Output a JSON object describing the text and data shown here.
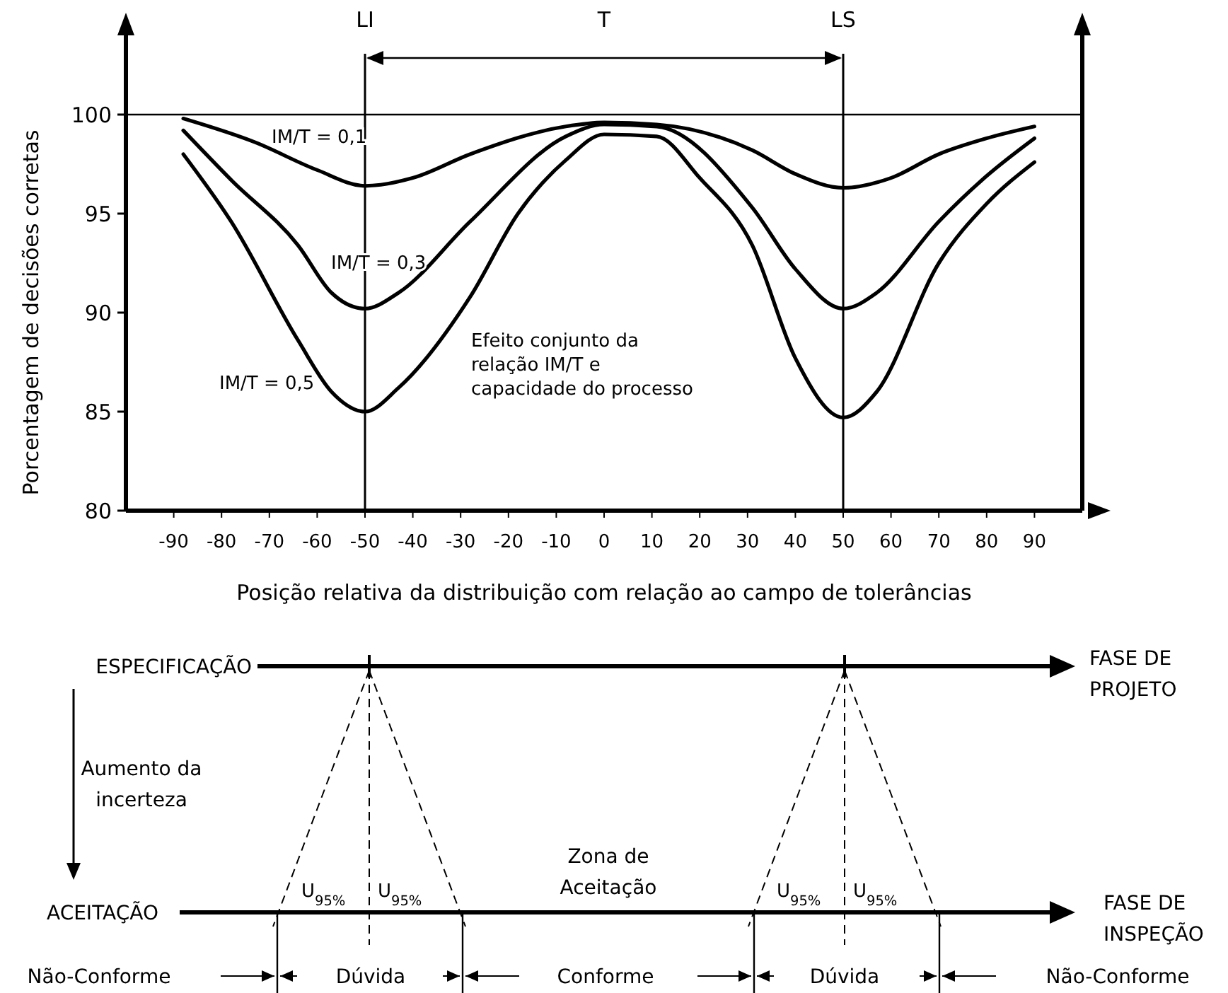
{
  "chart_data": [
    {
      "type": "line",
      "xlabel": "Posição relativa da distribuição com relação ao campo de tolerâncias",
      "ylabel": "Porcentagem de decisões corretas",
      "xlim": [
        -100,
        100
      ],
      "ylim": [
        80,
        104
      ],
      "xticks": [
        -90,
        -80,
        -70,
        -60,
        -50,
        -40,
        -30,
        -20,
        -10,
        0,
        10,
        20,
        30,
        40,
        50,
        60,
        70,
        80,
        90
      ],
      "yticks": [
        80,
        85,
        90,
        95,
        100
      ],
      "grid": false,
      "legend": false,
      "marker": "none",
      "line_style": "solid",
      "series": [
        {
          "name": "IM/T = 0,1",
          "color": "#000000",
          "x": [
            -88,
            -73,
            -60,
            -50,
            -40,
            -28,
            -8,
            0,
            11,
            31,
            40,
            50,
            60,
            70,
            80,
            90
          ],
          "values": [
            99.8,
            98.6,
            97.2,
            96.4,
            96.8,
            98.0,
            99.4,
            99.6,
            99.5,
            98.2,
            97.0,
            96.3,
            96.8,
            98.0,
            98.8,
            99.4
          ]
        },
        {
          "name": "IM/T = 0,3",
          "color": "#000000",
          "x": [
            -88,
            -78,
            -64,
            -57,
            -50,
            -43,
            -28,
            -8,
            0,
            11,
            31,
            40,
            50,
            57,
            70,
            80,
            90
          ],
          "values": [
            99.2,
            96.7,
            93.4,
            91.0,
            90.2,
            91.0,
            94.6,
            98.9,
            99.5,
            99.4,
            95.3,
            92.2,
            90.2,
            91.0,
            94.6,
            96.9,
            98.8
          ]
        },
        {
          "name": "IM/T = 0,5",
          "color": "#000000",
          "x": [
            -88,
            -78,
            -64,
            -57,
            -50,
            -43,
            -28,
            -18,
            -8,
            0,
            11,
            20,
            31,
            40,
            50,
            57,
            70,
            80,
            90
          ],
          "values": [
            98.0,
            94.6,
            88.6,
            86.0,
            85.0,
            86.2,
            90.8,
            95.0,
            97.7,
            99.0,
            98.9,
            96.8,
            93.4,
            87.7,
            84.7,
            86.0,
            92.5,
            95.5,
            97.6
          ]
        }
      ],
      "ref_lines": [
        {
          "axis": "x",
          "value": -50,
          "label": "LI"
        },
        {
          "axis": "x",
          "value": 50,
          "label": "LS"
        },
        {
          "axis": "y",
          "value": 100
        }
      ],
      "annotations": [
        "T",
        "Efeito conjunto da\nrelação IM/T e\ncapacidade do processo"
      ]
    },
    {
      "type": "other",
      "annotations": [
        "ESPECIFICAÇÃO",
        "FASE DE\nPROJETO",
        "Aumento da\nincerteza",
        "ACEITAÇÃO",
        "FASE DE\nINSPEÇÃO",
        "U$_{95%}$",
        "U$_{95%}$",
        "U$_{95%}$",
        "U$_{95%}$",
        "Zona de\nAceitação",
        "Não-Conforme",
        "Dúvida",
        "Conforme",
        "Dúvida",
        "Não-Conforme"
      ]
    }
  ]
}
